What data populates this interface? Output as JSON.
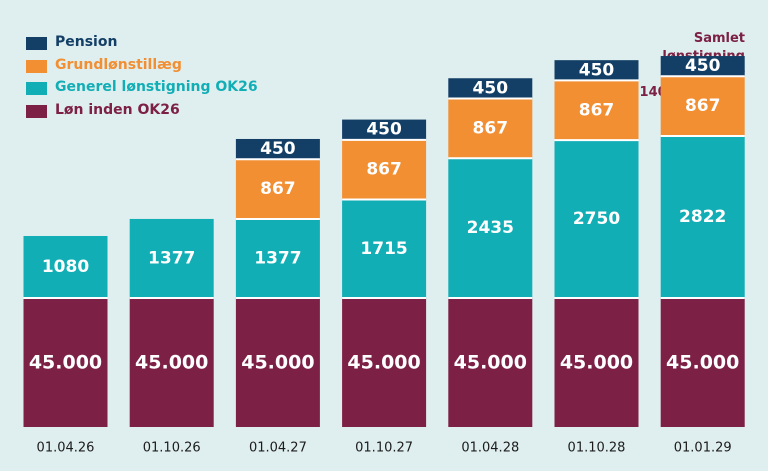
{
  "colors": {
    "background": "#dfeeee",
    "pension": "#133f66",
    "grundloen": "#f28f33",
    "generel": "#11aeb6",
    "loen": "#7c2046",
    "date_text": "#1c1c1c"
  },
  "summary": {
    "lines": [
      "Samlet",
      "lønstigning",
      "i alt",
      "4.140 kr. pr. md."
    ]
  },
  "chart_data": {
    "type": "bar",
    "stacked": true,
    "title": "",
    "xlabel": "",
    "ylabel": "",
    "grid": false,
    "legend_position": "top-left",
    "categories": [
      "01.04.26",
      "01.10.26",
      "01.04.27",
      "01.10.27",
      "01.04.28",
      "01.10.28",
      "01.01.29"
    ],
    "series": [
      {
        "name": "Løn inden OK26",
        "color": "#7c2046",
        "values": [
          45000,
          45000,
          45000,
          45000,
          45000,
          45000,
          45000
        ],
        "labels": [
          "45.000",
          "45.000",
          "45.000",
          "45.000",
          "45.000",
          "45.000",
          "45.000"
        ]
      },
      {
        "name": "Generel lønstigning OK26",
        "color": "#11aeb6",
        "values": [
          1080,
          1377,
          1377,
          1715,
          2435,
          2750,
          2822
        ],
        "labels": [
          "1080",
          "1377",
          "1377",
          "1715",
          "2435",
          "2750",
          "2822"
        ]
      },
      {
        "name": "Grundlønstillæg",
        "color": "#f28f33",
        "values": [
          0,
          0,
          867,
          867,
          867,
          867,
          867
        ],
        "labels": [
          "",
          "",
          "867",
          "867",
          "867",
          "867",
          "867"
        ]
      },
      {
        "name": "Pension",
        "color": "#133f66",
        "values": [
          0,
          0,
          450,
          450,
          450,
          450,
          450
        ],
        "labels": [
          "",
          "",
          "450",
          "450",
          "450",
          "450",
          "450"
        ]
      }
    ],
    "legend_order": [
      "Pension",
      "Grundlønstillæg",
      "Generel lønstigning OK26",
      "Løn inden OK26"
    ]
  }
}
